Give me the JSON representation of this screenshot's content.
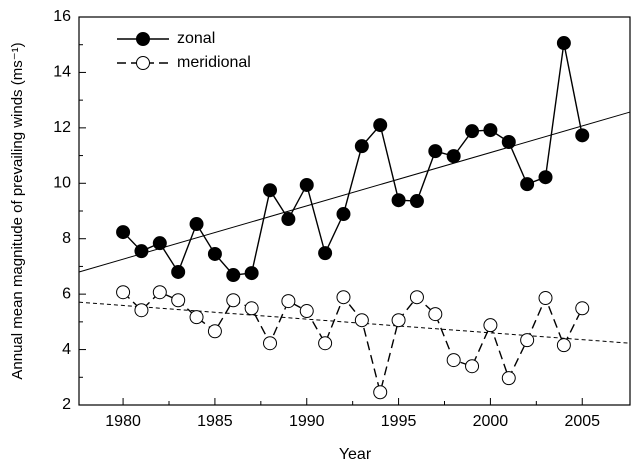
{
  "chart_data": {
    "type": "line",
    "x_label": "Year",
    "y_label": "Annual mean magnitude of prevailing winds (ms⁻¹)",
    "x": [
      1980,
      1981,
      1982,
      1983,
      1984,
      1985,
      1986,
      1987,
      1988,
      1989,
      1990,
      1991,
      1992,
      1993,
      1994,
      1995,
      1996,
      1997,
      1998,
      1999,
      2000,
      2001,
      2002,
      2003,
      2004,
      2005
    ],
    "series": [
      {
        "name": "zonal",
        "color": "#000000",
        "line_style": "solid",
        "marker_fill": "#000000",
        "values": [
          8.24,
          7.55,
          7.84,
          6.8,
          8.53,
          7.45,
          6.69,
          6.76,
          9.75,
          8.71,
          9.94,
          7.48,
          8.89,
          11.34,
          12.1,
          9.39,
          9.36,
          11.16,
          10.98,
          11.88,
          11.92,
          11.49,
          9.97,
          10.22,
          15.06,
          11.73
        ],
        "trend": {
          "x": [
            1977.6,
            2007.6
          ],
          "values": [
            6.8,
            12.57
          ],
          "line_style": "solid"
        }
      },
      {
        "name": "meridional",
        "color": "#000000",
        "line_style": "dashed",
        "marker_fill": "#ffffff",
        "values": [
          6.07,
          5.42,
          6.07,
          5.78,
          5.17,
          4.66,
          5.78,
          5.49,
          4.23,
          5.75,
          5.39,
          4.23,
          5.89,
          5.06,
          2.46,
          5.06,
          5.89,
          5.28,
          3.62,
          3.4,
          4.88,
          2.97,
          4.34,
          5.86,
          4.16,
          5.49
        ],
        "trend": {
          "x": [
            1977.6,
            2007.6
          ],
          "values": [
            5.71,
            4.23
          ],
          "line_style": "dotted"
        }
      }
    ],
    "xlim": [
      1977.6,
      2007.6
    ],
    "xticks": [
      1980,
      1985,
      1990,
      1995,
      2000,
      2005
    ],
    "ylim": [
      2,
      16
    ],
    "yticks": [
      2,
      4,
      6,
      8,
      10,
      12,
      14,
      16
    ],
    "grid": false,
    "legend": "upper-left"
  }
}
